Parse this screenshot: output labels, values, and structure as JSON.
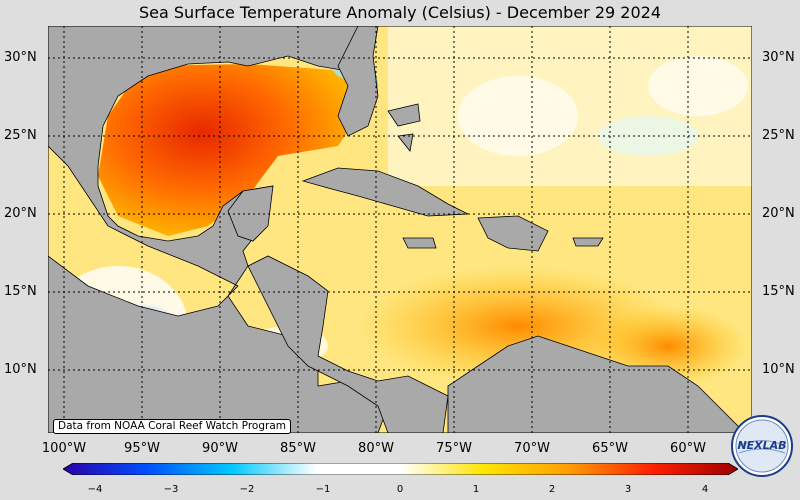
{
  "title": "Sea Surface Temperature Anomaly (Celsius) - December 29 2024",
  "credit": "Data from NOAA Coral Reef Watch Program",
  "logo_text": "NEXLAB",
  "lat_labels": [
    "30°N",
    "25°N",
    "20°N",
    "15°N",
    "10°N"
  ],
  "lon_labels": [
    "100°W",
    "95°W",
    "90°W",
    "85°W",
    "80°W",
    "75°W",
    "70°W",
    "65°W",
    "60°W"
  ],
  "colorbar": {
    "min": -4,
    "max": 4,
    "ticks": [
      "−4",
      "−3",
      "−2",
      "−1",
      "0",
      "1",
      "2",
      "3",
      "4"
    ],
    "colors": [
      "#2a00a8",
      "#0050ff",
      "#00c8ff",
      "#ffffff",
      "#ffffff",
      "#ffe400",
      "#ff9c00",
      "#ff2000",
      "#9c0000"
    ]
  },
  "colors": {
    "land": "#a9a9a9",
    "background": "#dedede"
  }
}
